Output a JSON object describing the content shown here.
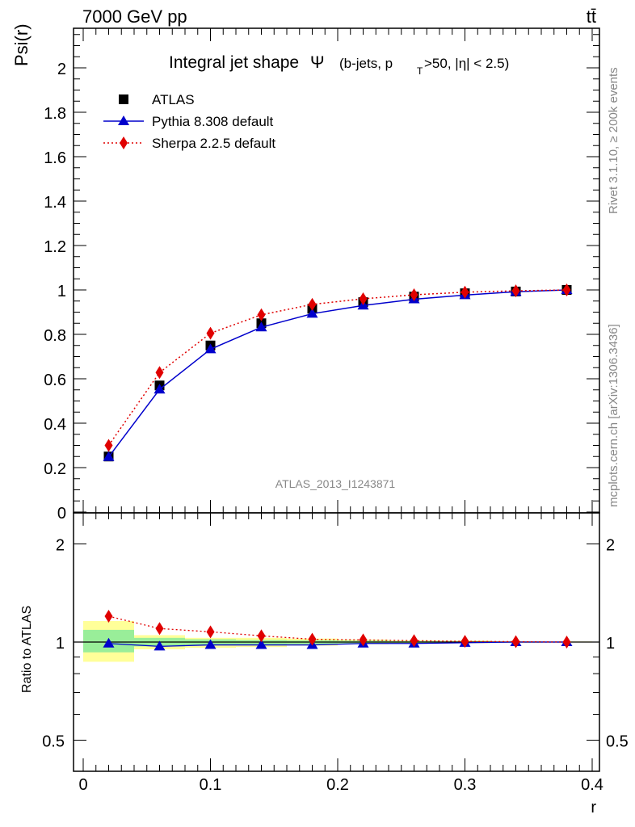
{
  "header": {
    "energy_label": "7000 GeV pp",
    "process_label": "tt̄",
    "side_label_top": "Rivet 3.1.10, ≥ 200k events",
    "side_label_bottom": "mcplots.cern.ch [arXiv:1306.3436]",
    "analysis_id": "ATLAS_2013_I1243871"
  },
  "chart_data": {
    "type": "line",
    "title_main": "Integral jet shape",
    "title_symbol": "Ψ",
    "title_detail": "(b-jets, p",
    "title_sub": "T",
    "title_rest": ">50, |η| < 2.5)",
    "ylabel": "Psi(r)",
    "xlabel": "r",
    "ratio_ylabel": "Ratio to ATLAS",
    "xlim": [
      -0.0015,
      0.4
    ],
    "ylim": [
      0,
      2.18
    ],
    "x_ticks": [
      "0",
      "0.1",
      "0.2",
      "0.3",
      "0.4"
    ],
    "y_ticks": [
      "0",
      "0.2",
      "0.4",
      "0.6",
      "0.8",
      "1",
      "1.2",
      "1.4",
      "1.6",
      "1.8",
      "2"
    ],
    "ratio_ticks": [
      "0.5",
      "1",
      "2"
    ],
    "ratio_ylim": [
      0.4,
      2.3
    ],
    "log_ratio_axis": true,
    "x": [
      0.02,
      0.06,
      0.1,
      0.14,
      0.18,
      0.22,
      0.26,
      0.3,
      0.34,
      0.38
    ],
    "series": [
      {
        "name": "ATLAS",
        "color": "#000000",
        "marker": "square",
        "line": "none",
        "values": [
          0.25,
          0.57,
          0.75,
          0.85,
          0.915,
          0.945,
          0.97,
          0.985,
          0.993,
          1.0
        ]
      },
      {
        "name": "Pythia 8.308 default",
        "color": "#0000cc",
        "marker": "triangle",
        "line": "solid",
        "values": [
          0.248,
          0.552,
          0.733,
          0.832,
          0.893,
          0.93,
          0.958,
          0.977,
          0.992,
          1.0
        ]
      },
      {
        "name": "Sherpa 2.2.5 default",
        "color": "#e00000",
        "marker": "diamond",
        "line": "dotted",
        "values": [
          0.3,
          0.628,
          0.805,
          0.888,
          0.935,
          0.96,
          0.978,
          0.99,
          0.996,
          1.0
        ]
      }
    ],
    "ratio_series": [
      {
        "name": "Pythia 8.308 default",
        "values": [
          0.99,
          0.97,
          0.98,
          0.98,
          0.98,
          0.99,
          0.99,
          0.995,
          1.0,
          1.0
        ]
      },
      {
        "name": "Sherpa 2.2.5 default",
        "values": [
          1.2,
          1.1,
          1.075,
          1.045,
          1.02,
          1.015,
          1.01,
          1.005,
          1.003,
          1.0
        ]
      }
    ],
    "uncertainty_bands": [
      {
        "x": [
          0.0,
          0.04
        ],
        "yellow": [
          0.87,
          1.16
        ],
        "green": [
          0.93,
          1.09
        ]
      },
      {
        "x": [
          0.04,
          0.08
        ],
        "yellow": [
          0.95,
          1.05
        ],
        "green": [
          0.97,
          1.03
        ]
      },
      {
        "x": [
          0.08,
          0.12
        ],
        "yellow": [
          0.96,
          1.03
        ],
        "green": [
          0.98,
          1.02
        ]
      },
      {
        "x": [
          0.12,
          0.16
        ],
        "yellow": [
          0.965,
          1.03
        ],
        "green": [
          0.98,
          1.015
        ]
      },
      {
        "x": [
          0.16,
          0.2
        ],
        "yellow": [
          0.975,
          1.025
        ],
        "green": [
          0.985,
          1.012
        ]
      },
      {
        "x": [
          0.2,
          0.24
        ],
        "yellow": [
          0.985,
          1.018
        ],
        "green": [
          0.99,
          1.01
        ]
      },
      {
        "x": [
          0.24,
          0.28
        ],
        "yellow": [
          0.99,
          1.012
        ],
        "green": [
          0.993,
          1.007
        ]
      },
      {
        "x": [
          0.28,
          0.32
        ],
        "yellow": [
          0.992,
          1.01
        ],
        "green": [
          0.995,
          1.005
        ]
      },
      {
        "x": [
          0.32,
          0.36
        ],
        "yellow": [
          0.995,
          1.006
        ],
        "green": [
          0.997,
          1.003
        ]
      },
      {
        "x": [
          0.36,
          0.4
        ],
        "yellow": [
          0.997,
          1.004
        ],
        "green": [
          0.998,
          1.002
        ]
      }
    ]
  }
}
